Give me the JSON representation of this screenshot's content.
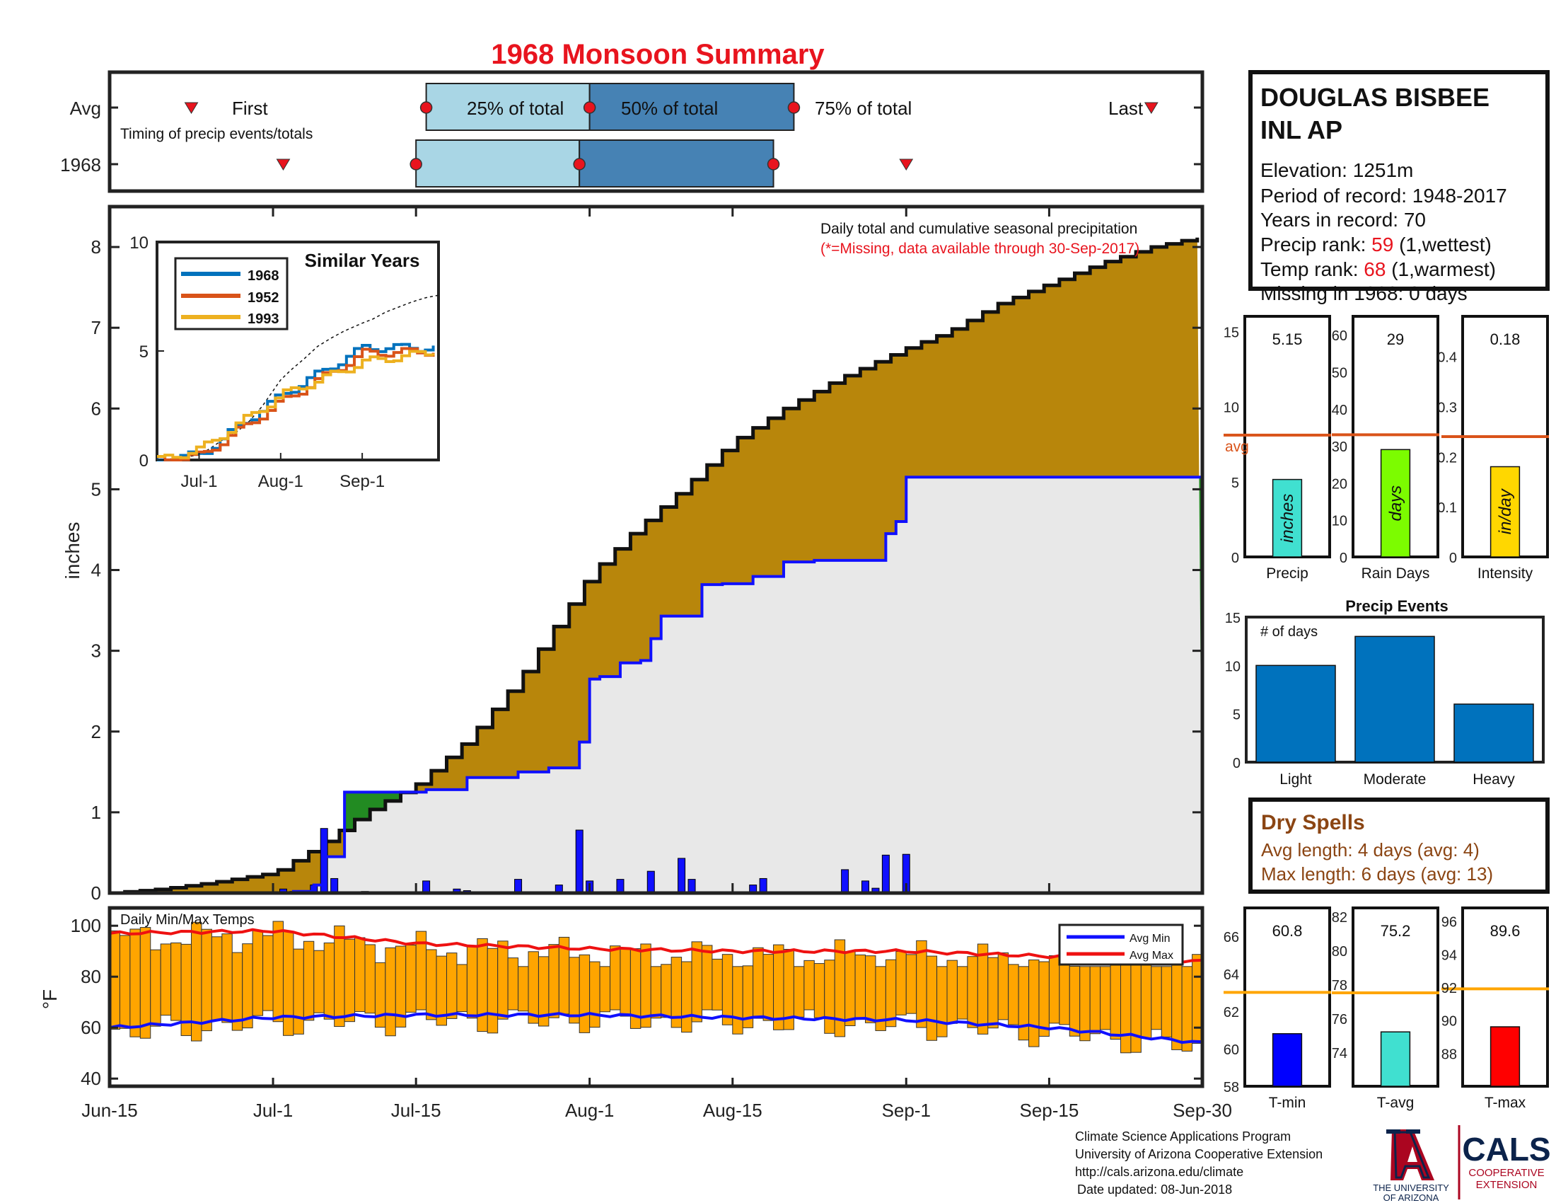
{
  "title": "1968 Monsoon Summary",
  "colors": {
    "title": "#e8141e",
    "precip_fill": "#b8860b",
    "above_avg_fill": "#228b22",
    "avg_fill": "#e8e8e8",
    "avg_line": "#1010ff",
    "daily_bar": "#1010ff",
    "pct_light": "#a9d6e5",
    "pct_dark": "#4682b4",
    "marker": "#e8141e",
    "avg_ref": "#d95319",
    "temp_bar": "#ffa500",
    "temp_ref": "#ffa500",
    "avg_min_line": "#1010ff",
    "avg_max_line": "#ee1111",
    "dry_text": "#8b4513"
  },
  "timing": {
    "row_labels": [
      "Avg",
      "1968"
    ],
    "caption": "Timing of precip events/totals",
    "first_label": "First",
    "last_label": "Last",
    "p25_label": "25% of total",
    "p50_label": "50% of total",
    "p75_label": "75% of total",
    "avg": {
      "first": "Jun-23",
      "p25": "Jul-16",
      "p50": "Aug-1",
      "p75": "Aug-21",
      "last": "Sep-25"
    },
    "year": {
      "first": "Jul-2",
      "p25": "Jul-15",
      "p50": "Jul-31",
      "p75": "Aug-19",
      "last": "Sep-1"
    }
  },
  "station": {
    "name_line1": "DOUGLAS BISBEE",
    "name_line2": "INL AP",
    "elevation": "Elevation: 1251m",
    "period": "Period of record: 1948-2017",
    "years": "Years in record: 70",
    "precip_rank_label": "Precip rank: ",
    "precip_rank_value": "59",
    "precip_rank_note": " (1,wettest)",
    "temp_rank_label": "Temp rank: ",
    "temp_rank_value": "68",
    "temp_rank_note": " (1,warmest)",
    "missing": "Missing in 1968: 0 days"
  },
  "main_plot": {
    "annotation_line1": "Daily total and cumulative seasonal precipitation",
    "annotation_line2": "(*=Missing, data available through 30-Sep-2017)",
    "ylabel": "inches",
    "ylim": [
      0,
      8.5
    ],
    "yticks": [
      "0",
      "1",
      "2",
      "3",
      "4",
      "5",
      "6",
      "7",
      "8"
    ],
    "xticks": [
      "Jun-15",
      "Jul-1",
      "Jul-15",
      "Aug-1",
      "Aug-15",
      "Sep-1",
      "Sep-15",
      "Sep-30"
    ]
  },
  "inset": {
    "title": "Similar Years",
    "yticks": [
      "0",
      "5",
      "10"
    ],
    "xticks": [
      "Jul-1",
      "Aug-1",
      "Sep-1"
    ],
    "legend": [
      "1968",
      "1952",
      "1993"
    ],
    "series_colors": [
      "#0072bd",
      "#d95319",
      "#edb120"
    ]
  },
  "stat_panels": {
    "precip": {
      "label": "Precip",
      "value_label": "5.15",
      "value": 5.15,
      "avg": 8.1,
      "ymax": 16,
      "yticks": [
        "0",
        "5",
        "10",
        "15"
      ],
      "bar_text": "inches",
      "color": "#40e0d0",
      "avg_label": "avg"
    },
    "rain_days": {
      "label": "Rain Days",
      "value_label": "29",
      "value": 29,
      "avg": 33,
      "ymax": 65,
      "yticks": [
        "0",
        "10",
        "20",
        "30",
        "40",
        "50",
        "60"
      ],
      "bar_text": "days",
      "color": "#7cfc00"
    },
    "intensity": {
      "label": "Intensity",
      "value_label": "0.18",
      "value": 0.18,
      "avg": 0.24,
      "ymax": 0.48,
      "yticks": [
        "0",
        "0.1",
        "0.2",
        "0.3",
        "0.4"
      ],
      "bar_text": "in/day",
      "color": "#ffd700"
    }
  },
  "events": {
    "title": "Precip Events",
    "ylabel": "# of days",
    "categories": [
      "Light",
      "Moderate",
      "Heavy"
    ],
    "values": [
      10,
      13,
      6
    ],
    "yticks": [
      "0",
      "5",
      "10",
      "15"
    ],
    "color": "#0072bd"
  },
  "dry_spells": {
    "title": "Dry Spells",
    "avg_length": "Avg length: 4 days (avg: 4)",
    "max_length": "Max length: 6 days (avg: 13)"
  },
  "temps": {
    "title": "Daily Min/Max Temps",
    "ylabel": "°F",
    "yticks": [
      "40",
      "60",
      "80",
      "100"
    ],
    "legend": [
      "Avg Min",
      "Avg Max"
    ]
  },
  "temp_panels": {
    "tmin": {
      "label": "T-min",
      "value_label": "60.8",
      "value": 60.8,
      "avg": 63.0,
      "ylim": [
        58,
        67.5
      ],
      "yticks": [
        "58",
        "60",
        "62",
        "64",
        "66"
      ],
      "color": "#0000ff"
    },
    "tavg": {
      "label": "T-avg",
      "value_label": "75.2",
      "value": 75.2,
      "avg": 77.5,
      "ylim": [
        72,
        82.5
      ],
      "yticks": [
        "74",
        "76",
        "78",
        "80",
        "82"
      ],
      "color": "#40e0d0"
    },
    "tmax": {
      "label": "T-max",
      "value_label": "89.6",
      "value": 89.6,
      "avg": 91.9,
      "ylim": [
        86,
        96.8
      ],
      "yticks": [
        "88",
        "90",
        "92",
        "94",
        "96"
      ],
      "color": "#ff0000"
    }
  },
  "footer": {
    "line1": "Climate Science Applications Program",
    "line2": "University of Arizona Cooperative Extension",
    "line3": "http://cals.arizona.edu/climate",
    "line4": "Date updated: 08-Jun-2018",
    "ua_logo_text1": "THE UNIVERSITY",
    "ua_logo_text2": "OF ARIZONA",
    "cals_text": "CALS",
    "cals_sub1": "COOPERATIVE",
    "cals_sub2": "EXTENSION"
  },
  "chart_data": [
    {
      "type": "area",
      "title": "Daily total and cumulative seasonal precipitation",
      "ylabel": "inches",
      "xlim": [
        "Jun-15",
        "Sep-30"
      ],
      "ylim": [
        0,
        8.5
      ],
      "series": [
        {
          "name": "cumulative_1968",
          "x": [
            "Jun-15",
            "Jul-1",
            "Jul-3",
            "Jul-5",
            "Jul-6",
            "Jul-8",
            "Jul-10",
            "Jul-16",
            "Jul-20",
            "Jul-25",
            "Jul-28",
            "Jul-31",
            "Aug-1",
            "Aug-2",
            "Aug-4",
            "Aug-6",
            "Aug-7",
            "Aug-8",
            "Aug-12",
            "Aug-14",
            "Aug-17",
            "Aug-20",
            "Aug-21",
            "Aug-23",
            "Aug-30",
            "Aug-31",
            "Sep-1",
            "Sep-30"
          ],
          "values": [
            0,
            0,
            0.02,
            0.1,
            0.45,
            1.25,
            1.25,
            1.28,
            1.43,
            1.5,
            1.55,
            1.87,
            2.65,
            2.68,
            2.85,
            2.88,
            3.15,
            3.43,
            3.82,
            3.83,
            3.92,
            4.1,
            4.1,
            4.12,
            4.45,
            4.6,
            5.15,
            5.15
          ]
        },
        {
          "name": "average_cumulative",
          "x": [
            "Jun-15",
            "Jun-20",
            "Jun-25",
            "Jul-1",
            "Jul-5",
            "Jul-10",
            "Jul-15",
            "Jul-20",
            "Jul-25",
            "Aug-1",
            "Aug-5",
            "Aug-10",
            "Aug-15",
            "Aug-20",
            "Aug-25",
            "Sep-1",
            "Sep-5",
            "Sep-10",
            "Sep-15",
            "Sep-20",
            "Sep-25",
            "Sep-30"
          ],
          "values": [
            0,
            0.05,
            0.13,
            0.25,
            0.55,
            1.0,
            1.35,
            1.9,
            2.65,
            3.95,
            4.45,
            5.0,
            5.6,
            6.0,
            6.35,
            6.75,
            6.95,
            7.3,
            7.55,
            7.8,
            8.0,
            8.13
          ]
        }
      ],
      "daily_bars": {
        "x": [
          "Jul-2",
          "Jul-3",
          "Jul-5",
          "Jul-6",
          "Jul-7",
          "Jul-10",
          "Jul-16",
          "Jul-19",
          "Jul-20",
          "Jul-25",
          "Jul-29",
          "Jul-31",
          "Aug-1",
          "Aug-4",
          "Aug-7",
          "Aug-10",
          "Aug-11",
          "Aug-17",
          "Aug-18",
          "Aug-26",
          "Aug-28",
          "Aug-29",
          "Aug-30",
          "Sep-1"
        ],
        "values": [
          0.05,
          0.02,
          0.1,
          0.8,
          0.18,
          0.02,
          0.15,
          0.05,
          0.03,
          0.17,
          0.1,
          0.78,
          0.15,
          0.17,
          0.27,
          0.43,
          0.17,
          0.1,
          0.18,
          0.29,
          0.15,
          0.06,
          0.47,
          0.48
        ]
      }
    },
    {
      "type": "line",
      "title": "Similar Years",
      "x": [
        "Jun-15",
        "Jul-1",
        "Aug-1",
        "Sep-1",
        "Sep-30"
      ],
      "ylim": [
        0,
        10
      ],
      "series": [
        {
          "name": "1968",
          "values": [
            0,
            0.25,
            3.0,
            5.15,
            5.15
          ]
        },
        {
          "name": "1952",
          "values": [
            0,
            0.2,
            2.7,
            4.9,
            5.0
          ]
        },
        {
          "name": "1993",
          "values": [
            0,
            0.5,
            3.0,
            4.5,
            5.0
          ]
        }
      ]
    },
    {
      "type": "bar",
      "title": "Precip Events",
      "categories": [
        "Light",
        "Moderate",
        "Heavy"
      ],
      "values": [
        10,
        13,
        6
      ],
      "ylim": [
        0,
        15
      ]
    },
    {
      "type": "bar",
      "title": "Daily Min/Max Temps",
      "ylabel": "°F",
      "ylim": [
        37,
        107
      ],
      "legend": [
        "Avg Min",
        "Avg Max"
      ],
      "avg_min": {
        "x": [
          "Jun-15",
          "Jul-1",
          "Jul-15",
          "Aug-1",
          "Aug-15",
          "Sep-1",
          "Sep-15",
          "Sep-30"
        ],
        "values": [
          60,
          64,
          65,
          65,
          64,
          63,
          60,
          54
        ]
      },
      "avg_max": {
        "x": [
          "Jun-15",
          "Jul-1",
          "Jul-15",
          "Aug-1",
          "Aug-15",
          "Sep-1",
          "Sep-15",
          "Sep-30"
        ],
        "values": [
          97,
          98,
          93,
          91,
          90,
          90,
          88,
          86
        ]
      },
      "daily_max_range": [
        84,
        105
      ],
      "daily_min_range": [
        43,
        67
      ]
    }
  ]
}
